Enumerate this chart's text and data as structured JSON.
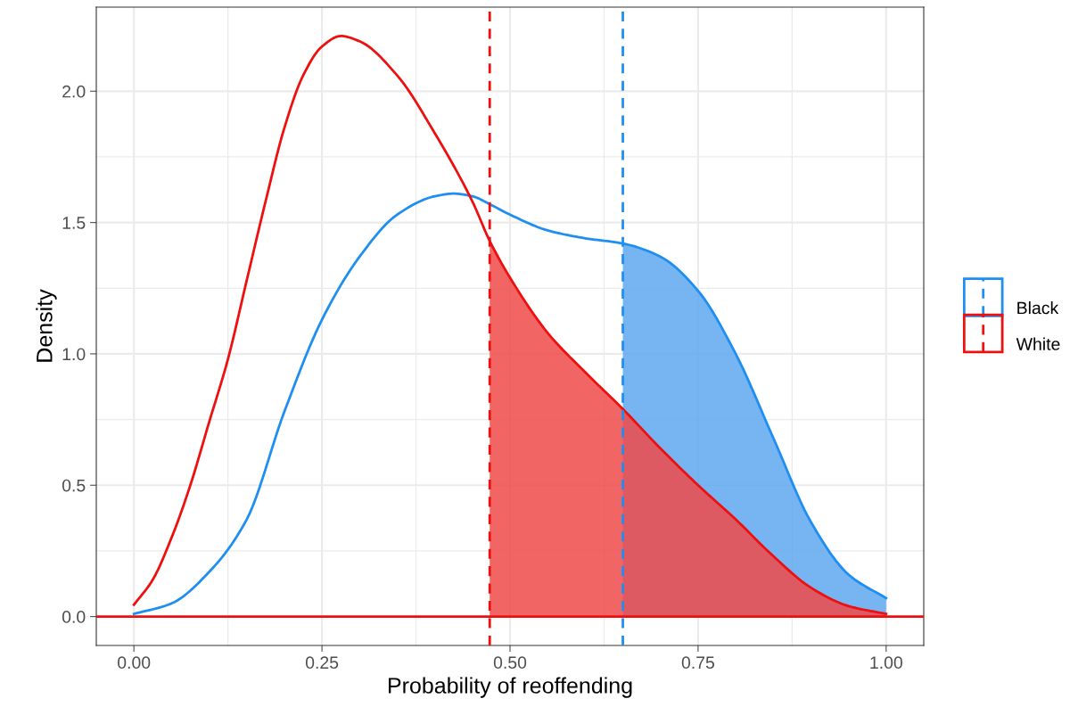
{
  "chart_data": {
    "type": "line",
    "xlabel": "Probability of reoffending",
    "ylabel": "Density",
    "xlim": [
      -0.05,
      1.05
    ],
    "xticks": [
      {
        "value": 0,
        "label": "0.00"
      },
      {
        "value": 0.25,
        "label": "0.25"
      },
      {
        "value": 0.5,
        "label": "0.50"
      },
      {
        "value": 0.75,
        "label": "0.75"
      },
      {
        "value": 1,
        "label": "1.00"
      }
    ],
    "ylim": [
      -0.11,
      2.32
    ],
    "yticks": [
      {
        "value": 0,
        "label": "0.0"
      },
      {
        "value": 0.5,
        "label": "0.5"
      },
      {
        "value": 1,
        "label": "1.0"
      },
      {
        "value": 1.5,
        "label": "1.5"
      },
      {
        "value": 2,
        "label": "2.0"
      }
    ],
    "grid": true,
    "legend": "right",
    "line_style": "solid",
    "marker": "none",
    "series": [
      {
        "type": "area",
        "color": "#5fa8f0",
        "x": [
          0.65,
          0.7,
          0.75,
          0.8,
          0.85,
          0.9,
          0.95,
          1.0
        ],
        "values": [
          1.42,
          1.37,
          1.24,
          1.0,
          0.68,
          0.36,
          0.16,
          0.07
        ]
      },
      {
        "type": "area",
        "color": "#f04a4a",
        "x": [
          0.473,
          0.5,
          0.55,
          0.6,
          0.65,
          0.7,
          0.75,
          0.8,
          0.85,
          0.9,
          0.95,
          1.0
        ],
        "values": [
          1.43,
          1.29,
          1.08,
          0.93,
          0.79,
          0.64,
          0.5,
          0.37,
          0.23,
          0.11,
          0.04,
          0.01
        ]
      },
      {
        "name": "Black",
        "color": "#1f8ef1",
        "x": [
          0,
          0.05,
          0.1,
          0.15,
          0.2,
          0.25,
          0.3,
          0.35,
          0.4,
          0.425,
          0.45,
          0.473,
          0.5,
          0.55,
          0.6,
          0.65,
          0.7,
          0.75,
          0.8,
          0.85,
          0.9,
          0.95,
          1.0
        ],
        "values": [
          0.01,
          0.05,
          0.17,
          0.37,
          0.78,
          1.13,
          1.37,
          1.53,
          1.6,
          1.61,
          1.6,
          1.57,
          1.53,
          1.47,
          1.44,
          1.42,
          1.37,
          1.24,
          1.0,
          0.68,
          0.36,
          0.16,
          0.07
        ]
      },
      {
        "name": "White",
        "color": "#ee0f0f",
        "x": [
          0,
          0.025,
          0.05,
          0.075,
          0.1,
          0.125,
          0.15,
          0.175,
          0.2,
          0.225,
          0.25,
          0.275,
          0.3,
          0.35,
          0.4,
          0.45,
          0.473,
          0.5,
          0.55,
          0.6,
          0.65,
          0.7,
          0.75,
          0.8,
          0.85,
          0.9,
          0.95,
          1.0
        ],
        "values": [
          0.045,
          0.14,
          0.3,
          0.5,
          0.74,
          0.98,
          1.28,
          1.58,
          1.86,
          2.06,
          2.17,
          2.21,
          2.19,
          2.06,
          1.84,
          1.58,
          1.43,
          1.29,
          1.08,
          0.93,
          0.79,
          0.64,
          0.5,
          0.37,
          0.23,
          0.11,
          0.04,
          0.01
        ]
      }
    ],
    "ref_lines": [
      {
        "axis": "x",
        "value": 0.473,
        "color": "#ee0f0f",
        "line_style": "dashed"
      },
      {
        "axis": "x",
        "value": 0.65,
        "color": "#1f8ef1",
        "line_style": "dashed"
      },
      {
        "axis": "y",
        "value": 0,
        "color": "#ee0f0f",
        "line_style": "solid"
      }
    ]
  }
}
